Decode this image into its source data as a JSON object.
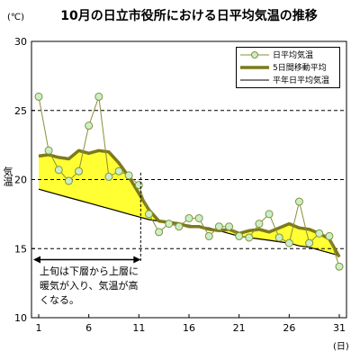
{
  "title": "10月の日立市役所における日平均気温の推移",
  "unit_label": "(℃)",
  "ylabel": "気温",
  "xunit": "(日)",
  "annotation": "上旬は下層から上層に暖気が入り、気温が高くなる。",
  "legend": [
    {
      "name": "日平均気温",
      "style": "marker-line"
    },
    {
      "name": "5日間移動平均",
      "style": "thick-line"
    },
    {
      "name": "平年日平均気温",
      "style": "thin-line"
    }
  ],
  "colors": {
    "daily": "#8a8f3a",
    "marker_fill": "#c8f0c8",
    "moving_avg": "#7d7a1a",
    "normal": "#000000",
    "fill": "#ffff33",
    "grid": "#000000"
  },
  "chart_data": {
    "type": "line",
    "title": "10月の日立市役所における日平均気温の推移",
    "xlabel": "(日)",
    "ylabel": "気温",
    "xlim": [
      1,
      31
    ],
    "ylim": [
      10,
      30
    ],
    "xticks": [
      1,
      6,
      11,
      16,
      21,
      26,
      31
    ],
    "yticks": [
      10,
      15,
      20,
      25,
      30
    ],
    "grid": "horizontal-dashed",
    "legend_position": "top-right",
    "series": [
      {
        "name": "日平均気温",
        "x": [
          1,
          2,
          3,
          4,
          5,
          6,
          7,
          8,
          9,
          10,
          11,
          12,
          13,
          14,
          15,
          16,
          17,
          18,
          19,
          20,
          21,
          22,
          23,
          24,
          25,
          26,
          27,
          28,
          29,
          30,
          31
        ],
        "values": [
          26.0,
          22.1,
          20.7,
          19.9,
          20.6,
          23.9,
          26.0,
          20.2,
          20.6,
          20.3,
          19.6,
          17.5,
          16.2,
          16.8,
          16.6,
          17.2,
          17.2,
          15.9,
          16.6,
          16.6,
          15.9,
          15.8,
          16.8,
          17.5,
          15.8,
          15.4,
          18.4,
          15.4,
          16.1,
          15.9,
          13.7
        ]
      },
      {
        "name": "5日間移動平均",
        "x": [
          1,
          2,
          3,
          4,
          5,
          6,
          7,
          8,
          9,
          10,
          11,
          12,
          13,
          14,
          15,
          16,
          17,
          18,
          19,
          20,
          21,
          22,
          23,
          24,
          25,
          26,
          27,
          28,
          29,
          30,
          31
        ],
        "values": [
          21.7,
          21.8,
          21.6,
          21.5,
          22.1,
          21.9,
          22.1,
          22.0,
          21.2,
          20.2,
          19.0,
          17.8,
          17.0,
          16.9,
          16.8,
          16.6,
          16.6,
          16.4,
          16.3,
          16.4,
          16.1,
          16.3,
          16.4,
          16.2,
          16.5,
          16.8,
          16.5,
          16.4,
          16.1,
          15.7,
          14.4
        ]
      },
      {
        "name": "平年日平均気温",
        "x": [
          1,
          2,
          3,
          4,
          5,
          6,
          7,
          8,
          9,
          10,
          11,
          12,
          13,
          14,
          15,
          16,
          17,
          18,
          19,
          20,
          21,
          22,
          23,
          24,
          25,
          26,
          27,
          28,
          29,
          30,
          31
        ],
        "values": [
          19.3,
          19.1,
          18.9,
          18.7,
          18.5,
          18.3,
          18.1,
          17.9,
          17.7,
          17.5,
          17.3,
          17.1,
          17.0,
          16.9,
          16.8,
          16.7,
          16.6,
          16.5,
          16.3,
          16.1,
          15.9,
          15.8,
          15.7,
          15.6,
          15.5,
          15.4,
          15.2,
          15.1,
          14.9,
          14.7,
          14.5
        ]
      }
    ],
    "annotation_range": {
      "x_start": 1,
      "x_end": 11,
      "y": 14.2
    }
  }
}
